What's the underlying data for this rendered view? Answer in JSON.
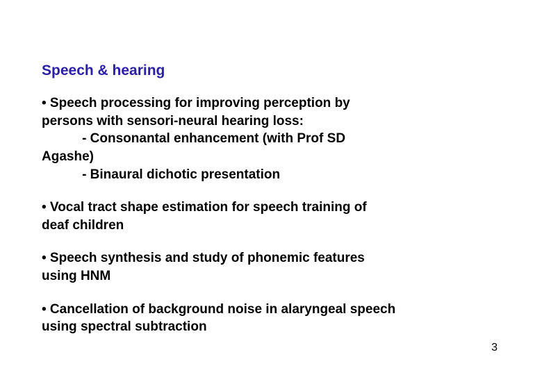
{
  "colors": {
    "title": "#2a1eaa",
    "body": "#000000",
    "background": "#ffffff"
  },
  "fontsizes": {
    "title": 21,
    "body": 19,
    "pagenum": 16
  },
  "title": "Speech & hearing",
  "bullets": {
    "b1_l1": "• Speech processing for improving perception by",
    "b1_l2": "persons with sensori-neural hearing loss:",
    "b1_l3": "           - Consonantal enhancement (with Prof SD",
    "b1_l4": "Agashe)",
    "b1_l5": "           - Binaural dichotic presentation",
    "b2_l1": "• Vocal tract shape estimation for speech training of",
    "b2_l2": "deaf children",
    "b3_l1": "• Speech synthesis and study of phonemic features",
    "b3_l2": "using HNM",
    "b4_l1": "• Cancellation of background noise in alaryngeal speech",
    "b4_l2": "using spectral subtraction"
  },
  "page_number": "3"
}
